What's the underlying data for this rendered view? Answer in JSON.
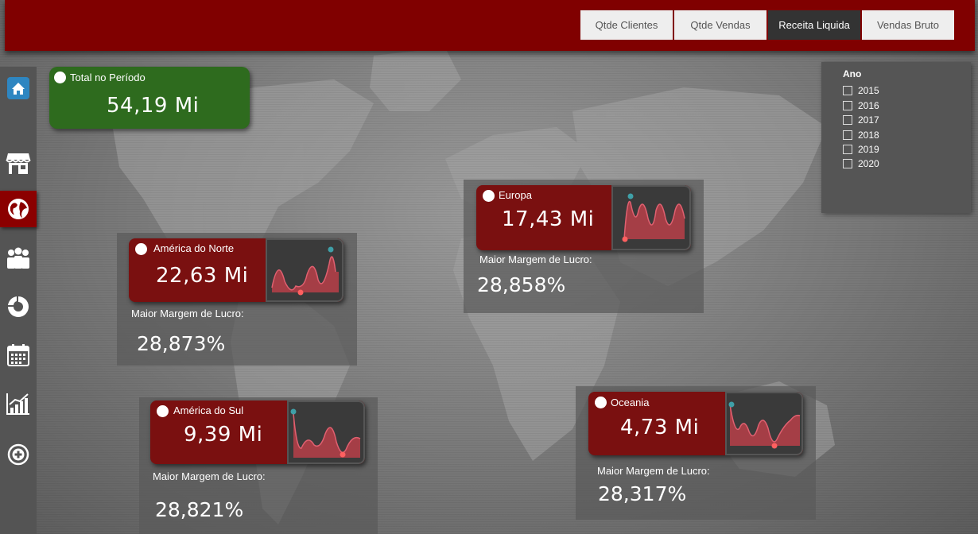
{
  "tabs": [
    {
      "label": "Qtde Clientes",
      "active": false
    },
    {
      "label": "Qtde Vendas",
      "active": false
    },
    {
      "label": "Receita Liquida",
      "active": true
    },
    {
      "label": "Vendas Bruto",
      "active": false
    }
  ],
  "sidebar": {
    "items": [
      {
        "icon": "home-icon"
      },
      {
        "icon": "store-icon"
      },
      {
        "icon": "globe-icon",
        "active": true
      },
      {
        "icon": "people-icon"
      },
      {
        "icon": "donut-chart-icon"
      },
      {
        "icon": "calendar-icon"
      },
      {
        "icon": "growth-chart-icon"
      },
      {
        "icon": "add-circle-icon"
      }
    ]
  },
  "total": {
    "label": "Total no Período",
    "value": "54,19 Mi"
  },
  "regions": {
    "north_america": {
      "name": "América do Norte",
      "value": "22,63 Mi",
      "margin_label": "Maior Margem de Lucro:",
      "margin_value": "28,873%"
    },
    "south_america": {
      "name": "América do Sul",
      "value": "9,39 Mi",
      "margin_label": "Maior Margem de Lucro:",
      "margin_value": "28,821%"
    },
    "europe": {
      "name": "Europa",
      "value": "17,43 Mi",
      "margin_label": "Maior Margem de Lucro:",
      "margin_value": "28,858%"
    },
    "oceania": {
      "name": "Oceania",
      "value": "4,73 Mi",
      "margin_label": "Maior Margem de Lucro:",
      "margin_value": "28,317%"
    }
  },
  "year_filter": {
    "title": "Ano",
    "years": [
      "2015",
      "2016",
      "2017",
      "2018",
      "2019",
      "2020"
    ]
  },
  "colors": {
    "header": "#800000",
    "card": "#7a1010",
    "total_card": "#2e6b1e",
    "spark_fill": "#c0404a",
    "spark_high": "#3fa0a8",
    "spark_low": "#ff6060"
  }
}
